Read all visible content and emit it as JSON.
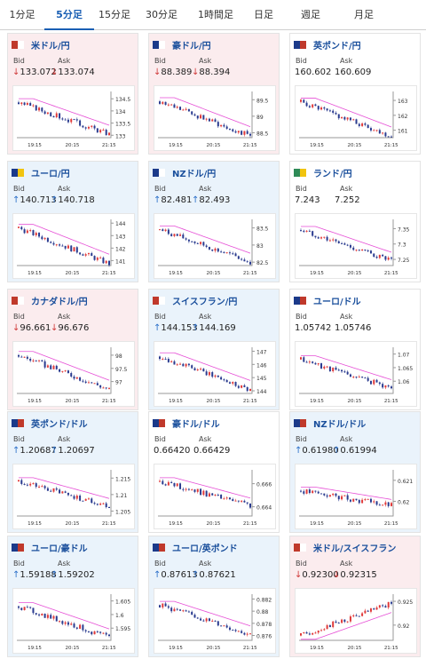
{
  "tabs": [
    {
      "label": "1分足",
      "active": false
    },
    {
      "label": "5分足",
      "active": true
    },
    {
      "label": "15分足",
      "active": false
    },
    {
      "label": "30分足",
      "active": false
    },
    {
      "label": "1時間足",
      "active": false
    },
    {
      "label": "日足",
      "active": false
    },
    {
      "label": "週足",
      "active": false
    },
    {
      "label": "月足",
      "active": false
    }
  ],
  "labels": {
    "bid": "Bid",
    "ask": "Ask"
  },
  "colors": {
    "up_bg": "#eaf3fb",
    "down_bg": "#fbecee",
    "up_arrow": "#2b6fc9",
    "down_arrow": "#d03a3a",
    "ma_line": "#e64fd6",
    "bull": "#e03a3a",
    "bear": "#2a3b8f",
    "pair_text": "#1a4f9c",
    "active_tab": "#1a5fb4"
  },
  "cards": [
    {
      "pair": "米ドル/円",
      "flag": [
        "#c0392b",
        "#ffffff"
      ],
      "direction": "down",
      "bid": "133.072",
      "ask": "133.074",
      "chart": {
        "yticks": [
          "134.5",
          "134",
          "133.5",
          "133"
        ],
        "ylim": [
          132.9,
          134.8
        ],
        "xticks": [
          "19:15",
          "20:15",
          "21:15"
        ],
        "trend": [
          134.35,
          133.05
        ]
      }
    },
    {
      "pair": "豪ドル/円",
      "flag": [
        "#1b3a8a",
        "#ffffff"
      ],
      "direction": "down",
      "bid": "88.389",
      "ask": "88.394",
      "chart": {
        "yticks": [
          "89.5",
          "89",
          "88.5"
        ],
        "ylim": [
          88.35,
          89.75
        ],
        "xticks": [
          "19:15",
          "20:15",
          "21:15"
        ],
        "trend": [
          89.45,
          88.4
        ]
      }
    },
    {
      "pair": "英ポンド/円",
      "flag": [
        "#1b3a8a",
        "#c0392b"
      ],
      "direction": "flat",
      "bid": "160.602",
      "ask": "160.609",
      "chart": {
        "yticks": [
          "163",
          "162",
          "161"
        ],
        "ylim": [
          160.5,
          163.6
        ],
        "xticks": [
          "19:15",
          "20:15",
          "21:15"
        ],
        "trend": [
          162.9,
          160.6
        ]
      }
    },
    {
      "pair": "ユーロ/円",
      "flag": [
        "#1b3a8a",
        "#f1c40f"
      ],
      "direction": "up",
      "bid": "140.713",
      "ask": "140.718",
      "chart": {
        "yticks": [
          "144",
          "143",
          "142",
          "141"
        ],
        "ylim": [
          140.6,
          144.3
        ],
        "xticks": [
          "19:15",
          "20:15",
          "21:15"
        ],
        "trend": [
          143.6,
          140.75
        ]
      }
    },
    {
      "pair": "NZドル/円",
      "flag": [
        "#1b3a8a",
        "#ffffff"
      ],
      "direction": "up",
      "bid": "82.481",
      "ask": "82.493",
      "chart": {
        "yticks": [
          "83.5",
          "83",
          "82.5"
        ],
        "ylim": [
          82.4,
          83.75
        ],
        "xticks": [
          "19:15",
          "20:15",
          "21:15"
        ],
        "trend": [
          83.45,
          82.5
        ]
      }
    },
    {
      "pair": "ランド/円",
      "flag": [
        "#2e8b57",
        "#f1c40f"
      ],
      "direction": "flat",
      "bid": "7.243",
      "ask": "7.252",
      "chart": {
        "yticks": [
          "7.35",
          "7.3",
          "7.25"
        ],
        "ylim": [
          7.23,
          7.38
        ],
        "xticks": [
          "19:15",
          "20:15",
          "21:15"
        ],
        "trend": [
          7.345,
          7.245
        ]
      }
    },
    {
      "pair": "カナダドル/円",
      "flag": [
        "#c0392b",
        "#ffffff"
      ],
      "direction": "down",
      "bid": "96.661",
      "ask": "96.676",
      "chart": {
        "yticks": [
          "98",
          "97.5",
          "97"
        ],
        "ylim": [
          96.55,
          98.3
        ],
        "xticks": [
          "19:15",
          "20:15",
          "21:15"
        ],
        "trend": [
          98.0,
          96.7
        ]
      }
    },
    {
      "pair": "スイスフラン/円",
      "flag": [
        "#c0392b",
        "#ffffff"
      ],
      "direction": "up",
      "bid": "144.153",
      "ask": "144.169",
      "chart": {
        "yticks": [
          "147",
          "146",
          "145",
          "144"
        ],
        "ylim": [
          143.8,
          147.3
        ],
        "xticks": [
          "19:15",
          "20:15",
          "21:15"
        ],
        "trend": [
          146.6,
          144.1
        ]
      }
    },
    {
      "pair": "ユーロ/ドル",
      "flag": [
        "#1b3a8a",
        "#c0392b"
      ],
      "direction": "flat",
      "bid": "1.05742",
      "ask": "1.05746",
      "chart": {
        "yticks": [
          "1.07",
          "1.065",
          "1.06"
        ],
        "ylim": [
          1.0555,
          1.0725
        ],
        "xticks": [
          "19:15",
          "20:15",
          "21:15"
        ],
        "trend": [
          1.068,
          1.0575
        ]
      }
    },
    {
      "pair": "英ポンド/ドル",
      "flag": [
        "#1b3a8a",
        "#c0392b"
      ],
      "direction": "up",
      "bid": "1.20687",
      "ask": "1.20697",
      "chart": {
        "yticks": [
          "1.215",
          "1.21",
          "1.205"
        ],
        "ylim": [
          1.2035,
          1.2175
        ],
        "xticks": [
          "19:15",
          "20:15",
          "21:15"
        ],
        "trend": [
          1.214,
          1.2065
        ]
      }
    },
    {
      "pair": "豪ドル/ドル",
      "flag": [
        "#1b3a8a",
        "#c0392b"
      ],
      "direction": "flat",
      "bid": "0.66420",
      "ask": "0.66429",
      "chart": {
        "yticks": [
          "0.666",
          "0.664"
        ],
        "ylim": [
          0.6632,
          0.6672
        ],
        "xticks": [
          "19:15",
          "20:15",
          "21:15"
        ],
        "trend": [
          0.6662,
          0.6641
        ]
      }
    },
    {
      "pair": "NZドル/ドル",
      "flag": [
        "#1b3a8a",
        "#c0392b"
      ],
      "direction": "up",
      "bid": "0.61980",
      "ask": "0.61994",
      "chart": {
        "yticks": [
          "0.621",
          "0.62"
        ],
        "ylim": [
          0.6193,
          0.6215
        ],
        "xticks": [
          "19:15",
          "20:15",
          "21:15"
        ],
        "trend": [
          0.6205,
          0.6198
        ]
      }
    },
    {
      "pair": "ユーロ/豪ドル",
      "flag": [
        "#1b3a8a",
        "#c0392b"
      ],
      "direction": "up",
      "bid": "1.59188",
      "ask": "1.59202",
      "chart": {
        "yticks": [
          "1.605",
          "1.6",
          "1.595"
        ],
        "ylim": [
          1.5905,
          1.6075
        ],
        "xticks": [
          "19:15",
          "20:15",
          "21:15"
        ],
        "trend": [
          1.603,
          1.5915
        ]
      }
    },
    {
      "pair": "ユーロ/英ポンド",
      "flag": [
        "#1b3a8a",
        "#c0392b"
      ],
      "direction": "up",
      "bid": "0.87613",
      "ask": "0.87621",
      "chart": {
        "yticks": [
          "0.882",
          "0.88",
          "0.878",
          "0.876"
        ],
        "ylim": [
          0.8752,
          0.8828
        ],
        "xticks": [
          "19:15",
          "20:15",
          "21:15"
        ],
        "trend": [
          0.881,
          0.8762
        ]
      }
    },
    {
      "pair": "米ドル/スイスフラン",
      "flag": [
        "#c0392b",
        "#ffffff"
      ],
      "direction": "down",
      "bid": "0.92300",
      "ask": "0.92315",
      "chart": {
        "yticks": [
          "0.925",
          "0.92"
        ],
        "ylim": [
          0.9168,
          0.9265
        ],
        "xticks": [
          "19:15",
          "20:15",
          "21:15"
        ],
        "trend": [
          0.9178,
          0.9245
        ]
      }
    }
  ]
}
